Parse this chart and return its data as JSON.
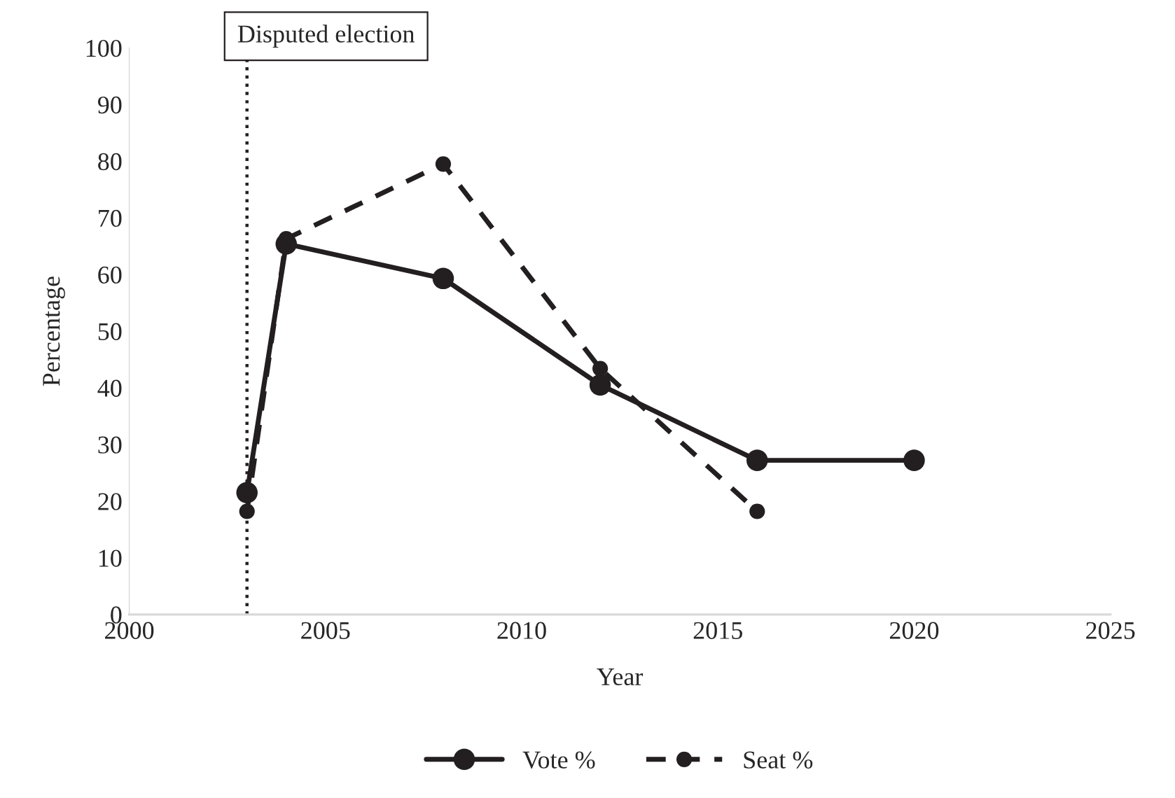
{
  "chart_data": {
    "type": "line",
    "xlabel": "Year",
    "ylabel": "Percentage",
    "xlim": [
      2000,
      2025
    ],
    "xticks": [
      2000,
      2005,
      2010,
      2015,
      2020,
      2025
    ],
    "ylim": [
      0,
      100
    ],
    "yticks": [
      0,
      10,
      20,
      30,
      40,
      50,
      60,
      70,
      80,
      90,
      100
    ],
    "series": [
      {
        "name": "Vote %",
        "color": "#231f20",
        "line_style": "solid",
        "x": [
          2003,
          2004,
          2008,
          2012,
          2016,
          2020
        ],
        "values": [
          21.5,
          65.4,
          59.3,
          40.5,
          27.2,
          27.2
        ]
      },
      {
        "name": "Seat %",
        "color": "#231f20",
        "line_style": "dashed",
        "x": [
          2003,
          2004,
          2008,
          2012,
          2016
        ],
        "values": [
          18.2,
          66.3,
          79.5,
          43.4,
          18.2
        ]
      }
    ],
    "marker": "circle",
    "grid": false,
    "legend": "bottom",
    "ref_lines": [
      {
        "axis": "x",
        "value": 2003,
        "label": "Disputed election",
        "color": "#231f20",
        "line_style": "dotted"
      }
    ]
  }
}
